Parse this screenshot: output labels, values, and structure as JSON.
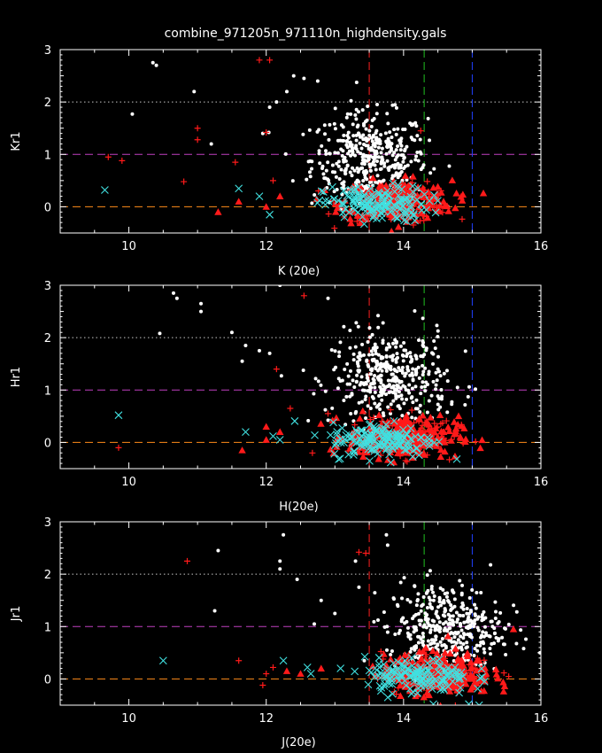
{
  "title": "combine_971205n_971110n_highdensity.gals",
  "colors": {
    "background": "#000000",
    "axes": "#ffffff",
    "white_points": "#ffffff",
    "red_markers": "#ff1a1a",
    "cyan_cross": "#40e0e0",
    "ref_dotted": "#c8c8c8",
    "magenta_dash": "#c040c0",
    "orange_dash": "#ff8c1a",
    "red_vline": "#ff2020",
    "green_vline": "#20c020",
    "blue_vline": "#2040ff"
  },
  "chart_data": [
    {
      "type": "scatter",
      "xlabel": "K (20e)",
      "ylabel": "Kr1",
      "xlim": [
        9,
        16
      ],
      "ylim": [
        -0.5,
        3
      ],
      "xticks": [
        "10",
        "12",
        "14",
        "16"
      ],
      "yticks": [
        "0",
        "1",
        "2",
        "3"
      ],
      "hlines": [
        {
          "y": 2,
          "style": "dotted",
          "color": "ref_dotted"
        },
        {
          "y": 1,
          "style": "dashed",
          "color": "magenta_dash"
        },
        {
          "y": 0,
          "style": "dashed",
          "color": "orange_dash"
        }
      ],
      "vlines": [
        {
          "x": 13.5,
          "color": "red_vline"
        },
        {
          "x": 14.3,
          "color": "green_vline"
        },
        {
          "x": 15.0,
          "color": "blue_vline"
        }
      ],
      "cloud": {
        "white_center": [
          13.5,
          0.9
        ],
        "red_center": [
          13.9,
          0.1
        ],
        "cyan_center": [
          13.6,
          0.05
        ]
      },
      "outliers": {
        "white": [
          [
            10.35,
            2.75
          ],
          [
            10.4,
            2.7
          ],
          [
            10.05,
            1.77
          ],
          [
            10.95,
            2.2
          ],
          [
            11.2,
            1.2
          ],
          [
            11.95,
            1.4
          ],
          [
            12.05,
            1.9
          ],
          [
            12.4,
            2.5
          ],
          [
            12.55,
            2.45
          ],
          [
            12.75,
            2.4
          ],
          [
            12.3,
            2.2
          ],
          [
            12.15,
            2.0
          ]
        ],
        "red_plus": [
          [
            9.7,
            0.95
          ],
          [
            9.9,
            0.88
          ],
          [
            10.8,
            0.48
          ],
          [
            11.0,
            1.5
          ],
          [
            11.0,
            1.28
          ],
          [
            11.55,
            0.85
          ],
          [
            11.9,
            2.8
          ],
          [
            12.05,
            2.8
          ],
          [
            12.0,
            1.42
          ],
          [
            14.25,
            1.45
          ],
          [
            12.1,
            0.5
          ]
        ],
        "red_tri": [
          [
            11.3,
            -0.1
          ],
          [
            11.6,
            0.1
          ],
          [
            12.0,
            0.0
          ],
          [
            12.2,
            0.2
          ]
        ],
        "cyan_x": [
          [
            9.65,
            0.32
          ],
          [
            11.6,
            0.35
          ],
          [
            11.9,
            0.2
          ],
          [
            12.05,
            -0.15
          ]
        ]
      }
    },
    {
      "type": "scatter",
      "xlabel": "H(20e)",
      "ylabel": "Hr1",
      "xlim": [
        9,
        16
      ],
      "ylim": [
        -0.5,
        3
      ],
      "xticks": [
        "10",
        "12",
        "14",
        "16"
      ],
      "yticks": [
        "0",
        "1",
        "2",
        "3"
      ],
      "hlines": [
        {
          "y": 2,
          "style": "dotted",
          "color": "ref_dotted"
        },
        {
          "y": 1,
          "style": "dashed",
          "color": "magenta_dash"
        },
        {
          "y": 0,
          "style": "dashed",
          "color": "orange_dash"
        }
      ],
      "vlines": [
        {
          "x": 13.5,
          "color": "red_vline"
        },
        {
          "x": 14.3,
          "color": "green_vline"
        },
        {
          "x": 15.0,
          "color": "blue_vline"
        }
      ],
      "cloud": {
        "white_center": [
          13.8,
          1.2
        ],
        "red_center": [
          14.0,
          0.1
        ],
        "cyan_center": [
          13.7,
          0.05
        ]
      },
      "outliers": {
        "white": [
          [
            10.65,
            2.85
          ],
          [
            10.7,
            2.75
          ],
          [
            11.05,
            2.65
          ],
          [
            11.05,
            2.5
          ],
          [
            10.45,
            2.08
          ],
          [
            11.5,
            2.1
          ],
          [
            11.7,
            1.85
          ],
          [
            11.9,
            1.75
          ],
          [
            11.65,
            1.55
          ],
          [
            12.05,
            1.7
          ],
          [
            12.2,
            3.0
          ],
          [
            12.9,
            2.75
          ]
        ],
        "red_plus": [
          [
            9.85,
            -0.1
          ],
          [
            12.55,
            2.8
          ],
          [
            12.15,
            1.4
          ],
          [
            12.35,
            0.65
          ],
          [
            12.9,
            0.55
          ]
        ],
        "red_tri": [
          [
            11.65,
            -0.15
          ],
          [
            12.0,
            0.05
          ],
          [
            12.2,
            0.2
          ],
          [
            12.0,
            0.3
          ]
        ],
        "cyan_x": [
          [
            9.85,
            0.52
          ],
          [
            11.7,
            0.2
          ],
          [
            12.1,
            0.12
          ],
          [
            12.2,
            0.05
          ]
        ]
      }
    },
    {
      "type": "scatter",
      "xlabel": "J(20e)",
      "ylabel": "Jr1",
      "xlim": [
        9,
        16
      ],
      "ylim": [
        -0.5,
        3
      ],
      "xticks": [
        "10",
        "12",
        "14",
        "16"
      ],
      "yticks": [
        "0",
        "1",
        "2",
        "3"
      ],
      "hlines": [
        {
          "y": 2,
          "style": "dotted",
          "color": "ref_dotted"
        },
        {
          "y": 1,
          "style": "dashed",
          "color": "magenta_dash"
        },
        {
          "y": 0,
          "style": "dashed",
          "color": "orange_dash"
        }
      ],
      "vlines": [
        {
          "x": 13.5,
          "color": "red_vline"
        },
        {
          "x": 14.3,
          "color": "green_vline"
        },
        {
          "x": 15.0,
          "color": "blue_vline"
        }
      ],
      "cloud": {
        "white_center": [
          14.6,
          0.95
        ],
        "red_center": [
          14.5,
          0.1
        ],
        "cyan_center": [
          14.2,
          0.05
        ]
      },
      "outliers": {
        "white": [
          [
            11.3,
            2.45
          ],
          [
            12.25,
            2.75
          ],
          [
            12.2,
            2.25
          ],
          [
            12.2,
            2.1
          ],
          [
            11.25,
            1.3
          ],
          [
            12.45,
            1.9
          ],
          [
            12.8,
            1.5
          ],
          [
            13.3,
            2.25
          ],
          [
            13.0,
            1.25
          ],
          [
            13.35,
            1.75
          ],
          [
            13.75,
            2.75
          ],
          [
            12.7,
            1.05
          ]
        ],
        "red_plus": [
          [
            10.85,
            2.25
          ],
          [
            13.35,
            2.42
          ],
          [
            13.45,
            2.4
          ],
          [
            11.6,
            0.35
          ],
          [
            11.95,
            -0.12
          ],
          [
            12.1,
            0.22
          ],
          [
            12.0,
            0.1
          ]
        ],
        "red_tri": [
          [
            12.3,
            0.15
          ],
          [
            12.5,
            0.1
          ],
          [
            12.8,
            0.2
          ],
          [
            15.6,
            0.95
          ]
        ],
        "cyan_x": [
          [
            10.5,
            0.35
          ],
          [
            12.25,
            0.35
          ],
          [
            12.6,
            0.22
          ],
          [
            12.65,
            0.1
          ],
          [
            14.95,
            -0.48
          ],
          [
            15.1,
            -0.5
          ]
        ]
      }
    }
  ]
}
